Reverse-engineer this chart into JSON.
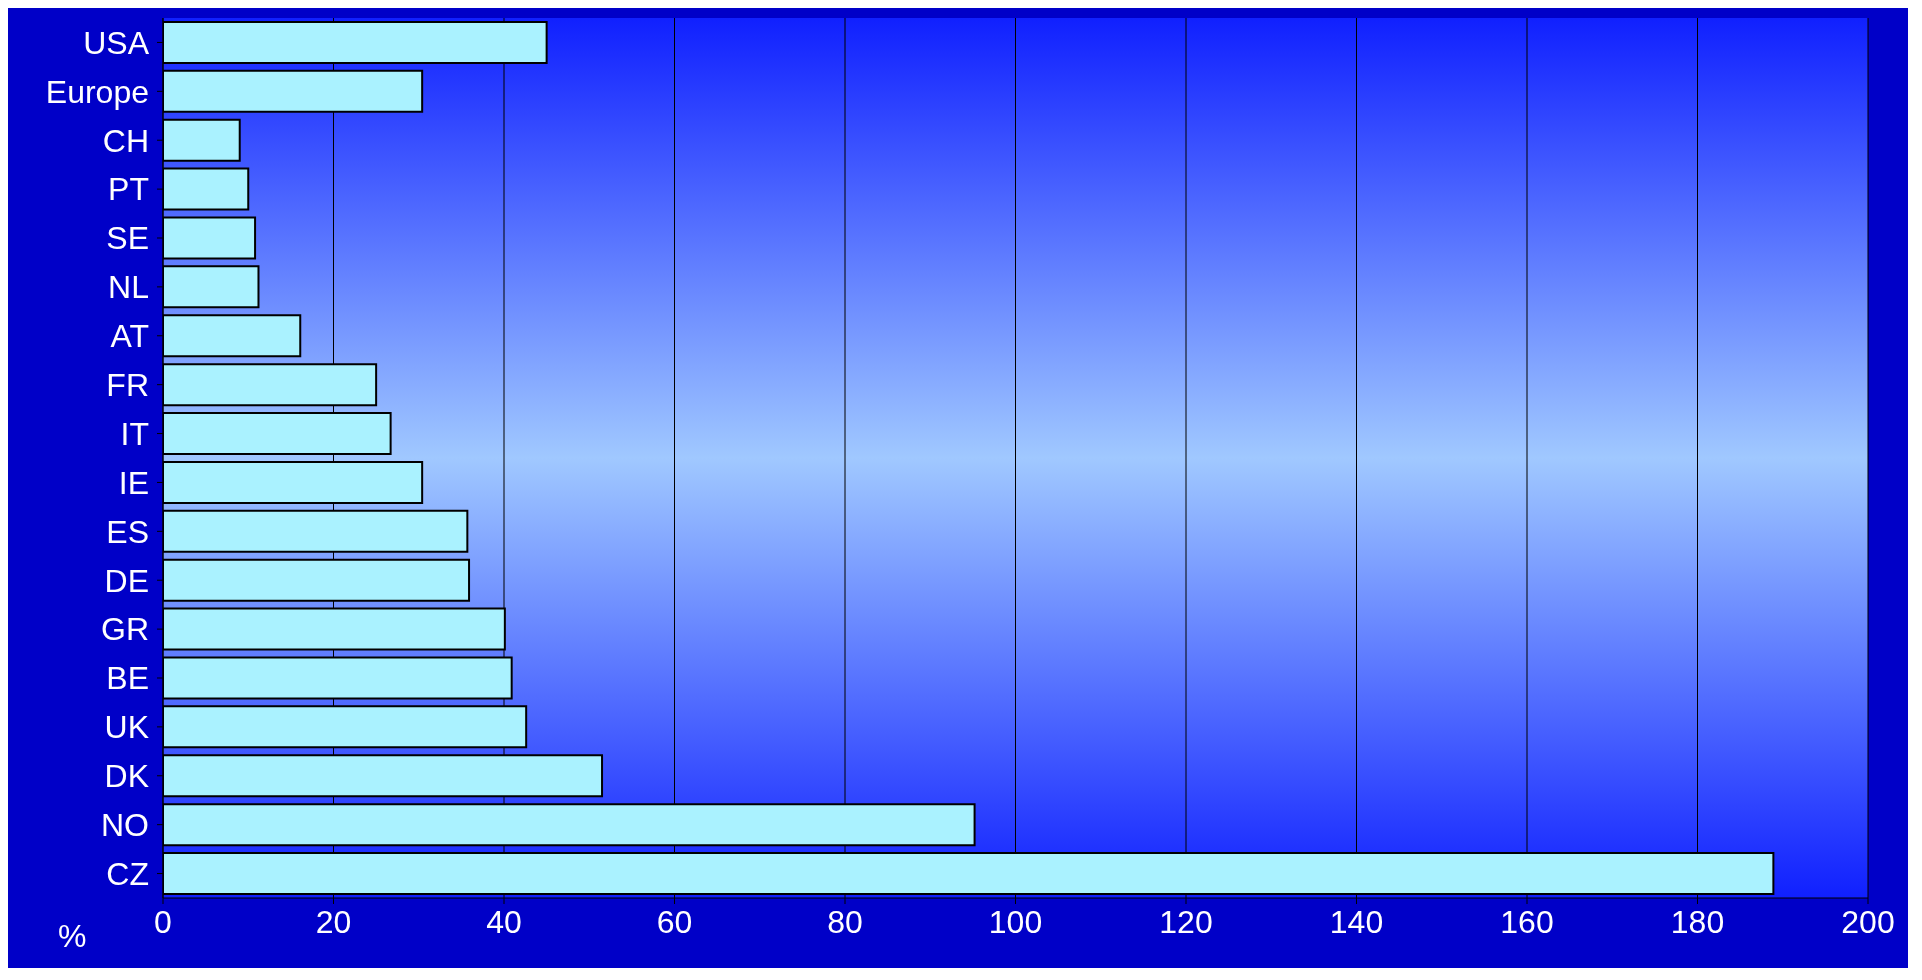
{
  "chart_data": {
    "type": "bar",
    "orientation": "horizontal",
    "xlabel": "%",
    "categories": [
      "USA",
      "Europe",
      "CH",
      "PT",
      "SE",
      "NL",
      "AT",
      "FR",
      "IT",
      "IE",
      "ES",
      "DE",
      "GR",
      "BE",
      "UK",
      "DK",
      "NO",
      "CZ"
    ],
    "values": [
      45,
      30.4,
      9,
      10,
      10.8,
      11.2,
      16.1,
      25,
      26.7,
      30.4,
      35.7,
      35.9,
      40.1,
      40.9,
      42.6,
      51.5,
      95.2,
      188.9
    ],
    "color": "#aaf2ff",
    "xlim": [
      0,
      200
    ],
    "xticks": [
      0,
      20,
      40,
      60,
      80,
      100,
      120,
      140,
      160,
      180,
      200
    ],
    "grid": "x"
  }
}
